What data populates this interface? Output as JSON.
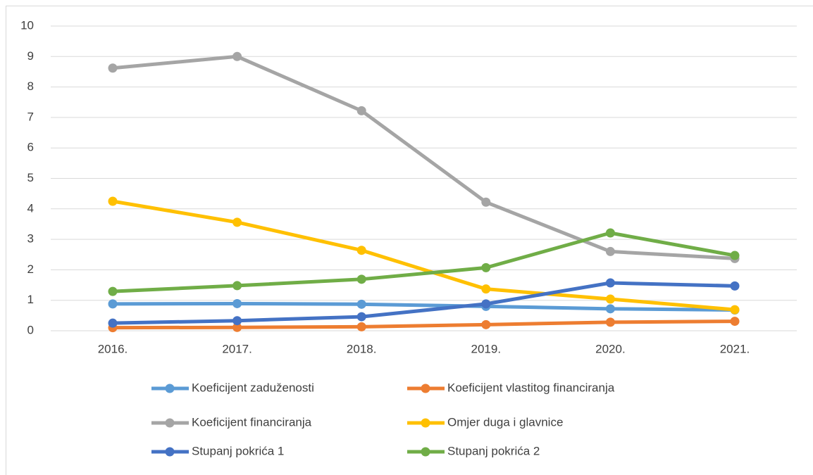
{
  "chart_data": {
    "type": "line",
    "categories": [
      "2016.",
      "2017.",
      "2018.",
      "2019.",
      "2020.",
      "2021."
    ],
    "series": [
      {
        "name": "Koeficijent zaduženosti",
        "color": "#5b9bd5",
        "values": [
          0.88,
          0.89,
          0.87,
          0.8,
          0.72,
          0.68
        ]
      },
      {
        "name": "Koeficijent vlastitog financiranja",
        "color": "#ed7d31",
        "values": [
          0.1,
          0.11,
          0.13,
          0.2,
          0.28,
          0.31
        ]
      },
      {
        "name": "Koeficijent financiranja",
        "color": "#a5a5a5",
        "values": [
          8.62,
          9.0,
          7.22,
          4.22,
          2.6,
          2.37
        ]
      },
      {
        "name": "Omjer duga i glavnice",
        "color": "#ffc000",
        "values": [
          4.25,
          3.56,
          2.64,
          1.37,
          1.04,
          0.69
        ]
      },
      {
        "name": "Stupanj pokrića 1",
        "color": "#4472c4",
        "values": [
          0.25,
          0.33,
          0.46,
          0.88,
          1.57,
          1.47
        ]
      },
      {
        "name": "Stupanj pokrića 2",
        "color": "#70ad47",
        "values": [
          1.29,
          1.48,
          1.69,
          2.07,
          3.21,
          2.47
        ]
      }
    ],
    "ylim": [
      0,
      10
    ],
    "yticks": [
      0,
      1,
      2,
      3,
      4,
      5,
      6,
      7,
      8,
      9,
      10
    ],
    "grid": true,
    "legend": "bottom"
  }
}
